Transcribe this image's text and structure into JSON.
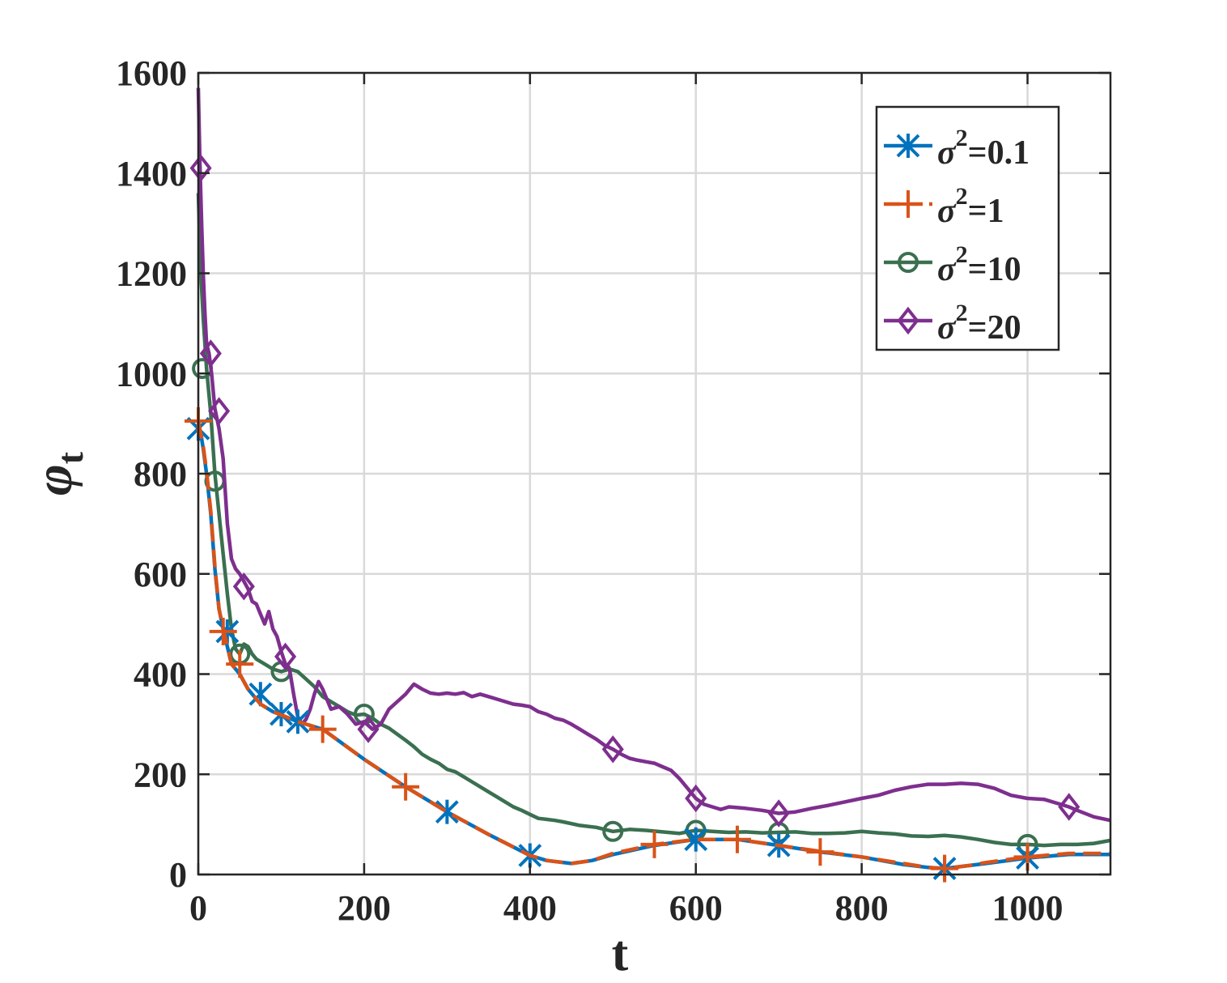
{
  "chart_data": {
    "type": "line",
    "title": "",
    "xlabel": "t",
    "ylabel_symbol": "φ",
    "ylabel_subscript": "t",
    "xlim": [
      0,
      1100
    ],
    "ylim": [
      0,
      1600
    ],
    "xticks": [
      0,
      200,
      400,
      600,
      800,
      1000
    ],
    "yticks": [
      0,
      200,
      400,
      600,
      800,
      1000,
      1200,
      1400,
      1600
    ],
    "grid": true,
    "legend_position": "top-right",
    "series": [
      {
        "name": "σ²=0.1",
        "name_base": "σ",
        "name_sup": "2",
        "name_suffix": "=0.1",
        "color": "#0072BD",
        "marker": "x",
        "dash": "solid",
        "points": [
          [
            0,
            900
          ],
          [
            3,
            880
          ],
          [
            6,
            850
          ],
          [
            10,
            800
          ],
          [
            15,
            720
          ],
          [
            20,
            610
          ],
          [
            25,
            530
          ],
          [
            30,
            490
          ],
          [
            40,
            420
          ],
          [
            50,
            400
          ],
          [
            60,
            370
          ],
          [
            75,
            340
          ],
          [
            90,
            325
          ],
          [
            105,
            315
          ],
          [
            120,
            305
          ],
          [
            150,
            290
          ],
          [
            200,
            230
          ],
          [
            250,
            175
          ],
          [
            300,
            125
          ],
          [
            350,
            80
          ],
          [
            400,
            38
          ],
          [
            420,
            28
          ],
          [
            450,
            22
          ],
          [
            475,
            28
          ],
          [
            500,
            40
          ],
          [
            550,
            58
          ],
          [
            600,
            70
          ],
          [
            650,
            70
          ],
          [
            700,
            58
          ],
          [
            750,
            45
          ],
          [
            800,
            35
          ],
          [
            850,
            20
          ],
          [
            880,
            14
          ],
          [
            900,
            12
          ],
          [
            930,
            18
          ],
          [
            950,
            22
          ],
          [
            1000,
            33
          ],
          [
            1050,
            40
          ],
          [
            1100,
            40
          ]
        ],
        "markers": [
          [
            0,
            890
          ],
          [
            35,
            485
          ],
          [
            75,
            360
          ],
          [
            100,
            320
          ],
          [
            120,
            305
          ],
          [
            300,
            125
          ],
          [
            400,
            38
          ],
          [
            600,
            70
          ],
          [
            700,
            58
          ],
          [
            900,
            12
          ],
          [
            1000,
            33
          ]
        ]
      },
      {
        "name": "σ²=1",
        "name_base": "σ",
        "name_sup": "2",
        "name_suffix": "=1",
        "color": "#D95319",
        "marker": "+",
        "dash": "dashed",
        "points": [
          [
            0,
            905
          ],
          [
            3,
            880
          ],
          [
            6,
            855
          ],
          [
            10,
            805
          ],
          [
            15,
            725
          ],
          [
            20,
            615
          ],
          [
            25,
            530
          ],
          [
            30,
            490
          ],
          [
            40,
            420
          ],
          [
            50,
            400
          ],
          [
            60,
            370
          ],
          [
            75,
            340
          ],
          [
            90,
            325
          ],
          [
            105,
            315
          ],
          [
            120,
            305
          ],
          [
            150,
            290
          ],
          [
            200,
            230
          ],
          [
            250,
            175
          ],
          [
            300,
            125
          ],
          [
            350,
            80
          ],
          [
            400,
            38
          ],
          [
            420,
            28
          ],
          [
            450,
            22
          ],
          [
            475,
            28
          ],
          [
            500,
            42
          ],
          [
            550,
            60
          ],
          [
            600,
            70
          ],
          [
            650,
            70
          ],
          [
            700,
            58
          ],
          [
            750,
            46
          ],
          [
            800,
            35
          ],
          [
            850,
            22
          ],
          [
            880,
            14
          ],
          [
            900,
            12
          ],
          [
            930,
            18
          ],
          [
            950,
            24
          ],
          [
            1000,
            35
          ],
          [
            1050,
            42
          ],
          [
            1100,
            42
          ]
        ],
        "markers": [
          [
            0,
            905
          ],
          [
            30,
            485
          ],
          [
            50,
            420
          ],
          [
            150,
            290
          ],
          [
            250,
            175
          ],
          [
            550,
            60
          ],
          [
            650,
            70
          ],
          [
            750,
            45
          ],
          [
            900,
            12
          ],
          [
            1000,
            35
          ]
        ]
      },
      {
        "name": "σ²=10",
        "name_base": "σ",
        "name_sup": "2",
        "name_suffix": "=10",
        "color": "#3A7050",
        "marker": "o",
        "dash": "solid",
        "points": [
          [
            0,
            1360
          ],
          [
            3,
            1200
          ],
          [
            6,
            1110
          ],
          [
            10,
            1010
          ],
          [
            15,
            920
          ],
          [
            20,
            800
          ],
          [
            25,
            720
          ],
          [
            30,
            640
          ],
          [
            35,
            560
          ],
          [
            40,
            490
          ],
          [
            45,
            450
          ],
          [
            50,
            440
          ],
          [
            55,
            460
          ],
          [
            60,
            455
          ],
          [
            65,
            440
          ],
          [
            70,
            430
          ],
          [
            80,
            420
          ],
          [
            90,
            410
          ],
          [
            100,
            405
          ],
          [
            110,
            410
          ],
          [
            120,
            405
          ],
          [
            130,
            390
          ],
          [
            140,
            375
          ],
          [
            150,
            355
          ],
          [
            160,
            345
          ],
          [
            170,
            335
          ],
          [
            180,
            325
          ],
          [
            190,
            318
          ],
          [
            200,
            320
          ],
          [
            210,
            312
          ],
          [
            220,
            300
          ],
          [
            230,
            292
          ],
          [
            240,
            280
          ],
          [
            250,
            268
          ],
          [
            260,
            255
          ],
          [
            270,
            240
          ],
          [
            280,
            230
          ],
          [
            290,
            222
          ],
          [
            300,
            210
          ],
          [
            310,
            205
          ],
          [
            320,
            195
          ],
          [
            330,
            185
          ],
          [
            340,
            175
          ],
          [
            350,
            165
          ],
          [
            360,
            155
          ],
          [
            370,
            145
          ],
          [
            380,
            135
          ],
          [
            390,
            128
          ],
          [
            400,
            120
          ],
          [
            410,
            112
          ],
          [
            420,
            110
          ],
          [
            430,
            108
          ],
          [
            440,
            105
          ],
          [
            460,
            98
          ],
          [
            480,
            94
          ],
          [
            500,
            86
          ],
          [
            520,
            90
          ],
          [
            540,
            88
          ],
          [
            560,
            85
          ],
          [
            580,
            82
          ],
          [
            600,
            88
          ],
          [
            620,
            86
          ],
          [
            640,
            84
          ],
          [
            660,
            85
          ],
          [
            680,
            83
          ],
          [
            700,
            84
          ],
          [
            720,
            85
          ],
          [
            740,
            82
          ],
          [
            760,
            82
          ],
          [
            780,
            83
          ],
          [
            800,
            86
          ],
          [
            820,
            83
          ],
          [
            840,
            81
          ],
          [
            860,
            77
          ],
          [
            880,
            76
          ],
          [
            900,
            78
          ],
          [
            920,
            75
          ],
          [
            940,
            70
          ],
          [
            960,
            64
          ],
          [
            980,
            60
          ],
          [
            1000,
            60
          ],
          [
            1020,
            58
          ],
          [
            1040,
            60
          ],
          [
            1060,
            60
          ],
          [
            1080,
            62
          ],
          [
            1100,
            68
          ]
        ],
        "markers": [
          [
            5,
            1010
          ],
          [
            20,
            785
          ],
          [
            50,
            440
          ],
          [
            100,
            405
          ],
          [
            200,
            320
          ],
          [
            500,
            86
          ],
          [
            600,
            88
          ],
          [
            700,
            84
          ],
          [
            1000,
            60
          ]
        ]
      },
      {
        "name": "σ²=20",
        "name_base": "σ",
        "name_sup": "2",
        "name_suffix": "=20",
        "color": "#7E2F8E",
        "marker": "diamond",
        "dash": "solid",
        "points": [
          [
            0,
            1570
          ],
          [
            2,
            1420
          ],
          [
            4,
            1300
          ],
          [
            6,
            1200
          ],
          [
            8,
            1120
          ],
          [
            10,
            1060
          ],
          [
            13,
            1040
          ],
          [
            16,
            1000
          ],
          [
            20,
            930
          ],
          [
            25,
            890
          ],
          [
            30,
            830
          ],
          [
            35,
            700
          ],
          [
            40,
            630
          ],
          [
            45,
            610
          ],
          [
            50,
            600
          ],
          [
            55,
            585
          ],
          [
            60,
            570
          ],
          [
            65,
            545
          ],
          [
            70,
            540
          ],
          [
            75,
            520
          ],
          [
            80,
            500
          ],
          [
            85,
            525
          ],
          [
            90,
            490
          ],
          [
            95,
            475
          ],
          [
            100,
            445
          ],
          [
            105,
            420
          ],
          [
            110,
            410
          ],
          [
            115,
            360
          ],
          [
            120,
            315
          ],
          [
            125,
            300
          ],
          [
            130,
            310
          ],
          [
            135,
            330
          ],
          [
            140,
            360
          ],
          [
            145,
            385
          ],
          [
            150,
            370
          ],
          [
            155,
            350
          ],
          [
            160,
            330
          ],
          [
            170,
            335
          ],
          [
            180,
            320
          ],
          [
            190,
            300
          ],
          [
            200,
            305
          ],
          [
            210,
            290
          ],
          [
            220,
            300
          ],
          [
            230,
            330
          ],
          [
            240,
            345
          ],
          [
            250,
            360
          ],
          [
            260,
            380
          ],
          [
            270,
            370
          ],
          [
            280,
            362
          ],
          [
            290,
            360
          ],
          [
            300,
            362
          ],
          [
            310,
            360
          ],
          [
            320,
            363
          ],
          [
            330,
            355
          ],
          [
            340,
            360
          ],
          [
            350,
            355
          ],
          [
            360,
            350
          ],
          [
            370,
            345
          ],
          [
            380,
            340
          ],
          [
            390,
            338
          ],
          [
            400,
            335
          ],
          [
            410,
            325
          ],
          [
            420,
            320
          ],
          [
            430,
            312
          ],
          [
            440,
            308
          ],
          [
            450,
            300
          ],
          [
            460,
            290
          ],
          [
            470,
            280
          ],
          [
            480,
            270
          ],
          [
            490,
            258
          ],
          [
            500,
            250
          ],
          [
            510,
            240
          ],
          [
            520,
            232
          ],
          [
            530,
            228
          ],
          [
            540,
            225
          ],
          [
            550,
            222
          ],
          [
            560,
            215
          ],
          [
            570,
            208
          ],
          [
            580,
            192
          ],
          [
            590,
            172
          ],
          [
            600,
            152
          ],
          [
            610,
            140
          ],
          [
            620,
            135
          ],
          [
            630,
            130
          ],
          [
            640,
            135
          ],
          [
            660,
            132
          ],
          [
            680,
            128
          ],
          [
            700,
            122
          ],
          [
            720,
            125
          ],
          [
            740,
            132
          ],
          [
            760,
            138
          ],
          [
            780,
            145
          ],
          [
            800,
            152
          ],
          [
            820,
            158
          ],
          [
            840,
            168
          ],
          [
            860,
            175
          ],
          [
            880,
            180
          ],
          [
            900,
            180
          ],
          [
            920,
            182
          ],
          [
            940,
            180
          ],
          [
            960,
            172
          ],
          [
            980,
            158
          ],
          [
            1000,
            152
          ],
          [
            1020,
            150
          ],
          [
            1040,
            140
          ],
          [
            1050,
            135
          ],
          [
            1060,
            128
          ],
          [
            1080,
            115
          ],
          [
            1100,
            108
          ]
        ],
        "markers": [
          [
            3,
            1410
          ],
          [
            15,
            1040
          ],
          [
            25,
            925
          ],
          [
            55,
            575
          ],
          [
            105,
            435
          ],
          [
            205,
            290
          ],
          [
            500,
            250
          ],
          [
            600,
            152
          ],
          [
            700,
            122
          ],
          [
            1050,
            135
          ]
        ]
      }
    ]
  }
}
